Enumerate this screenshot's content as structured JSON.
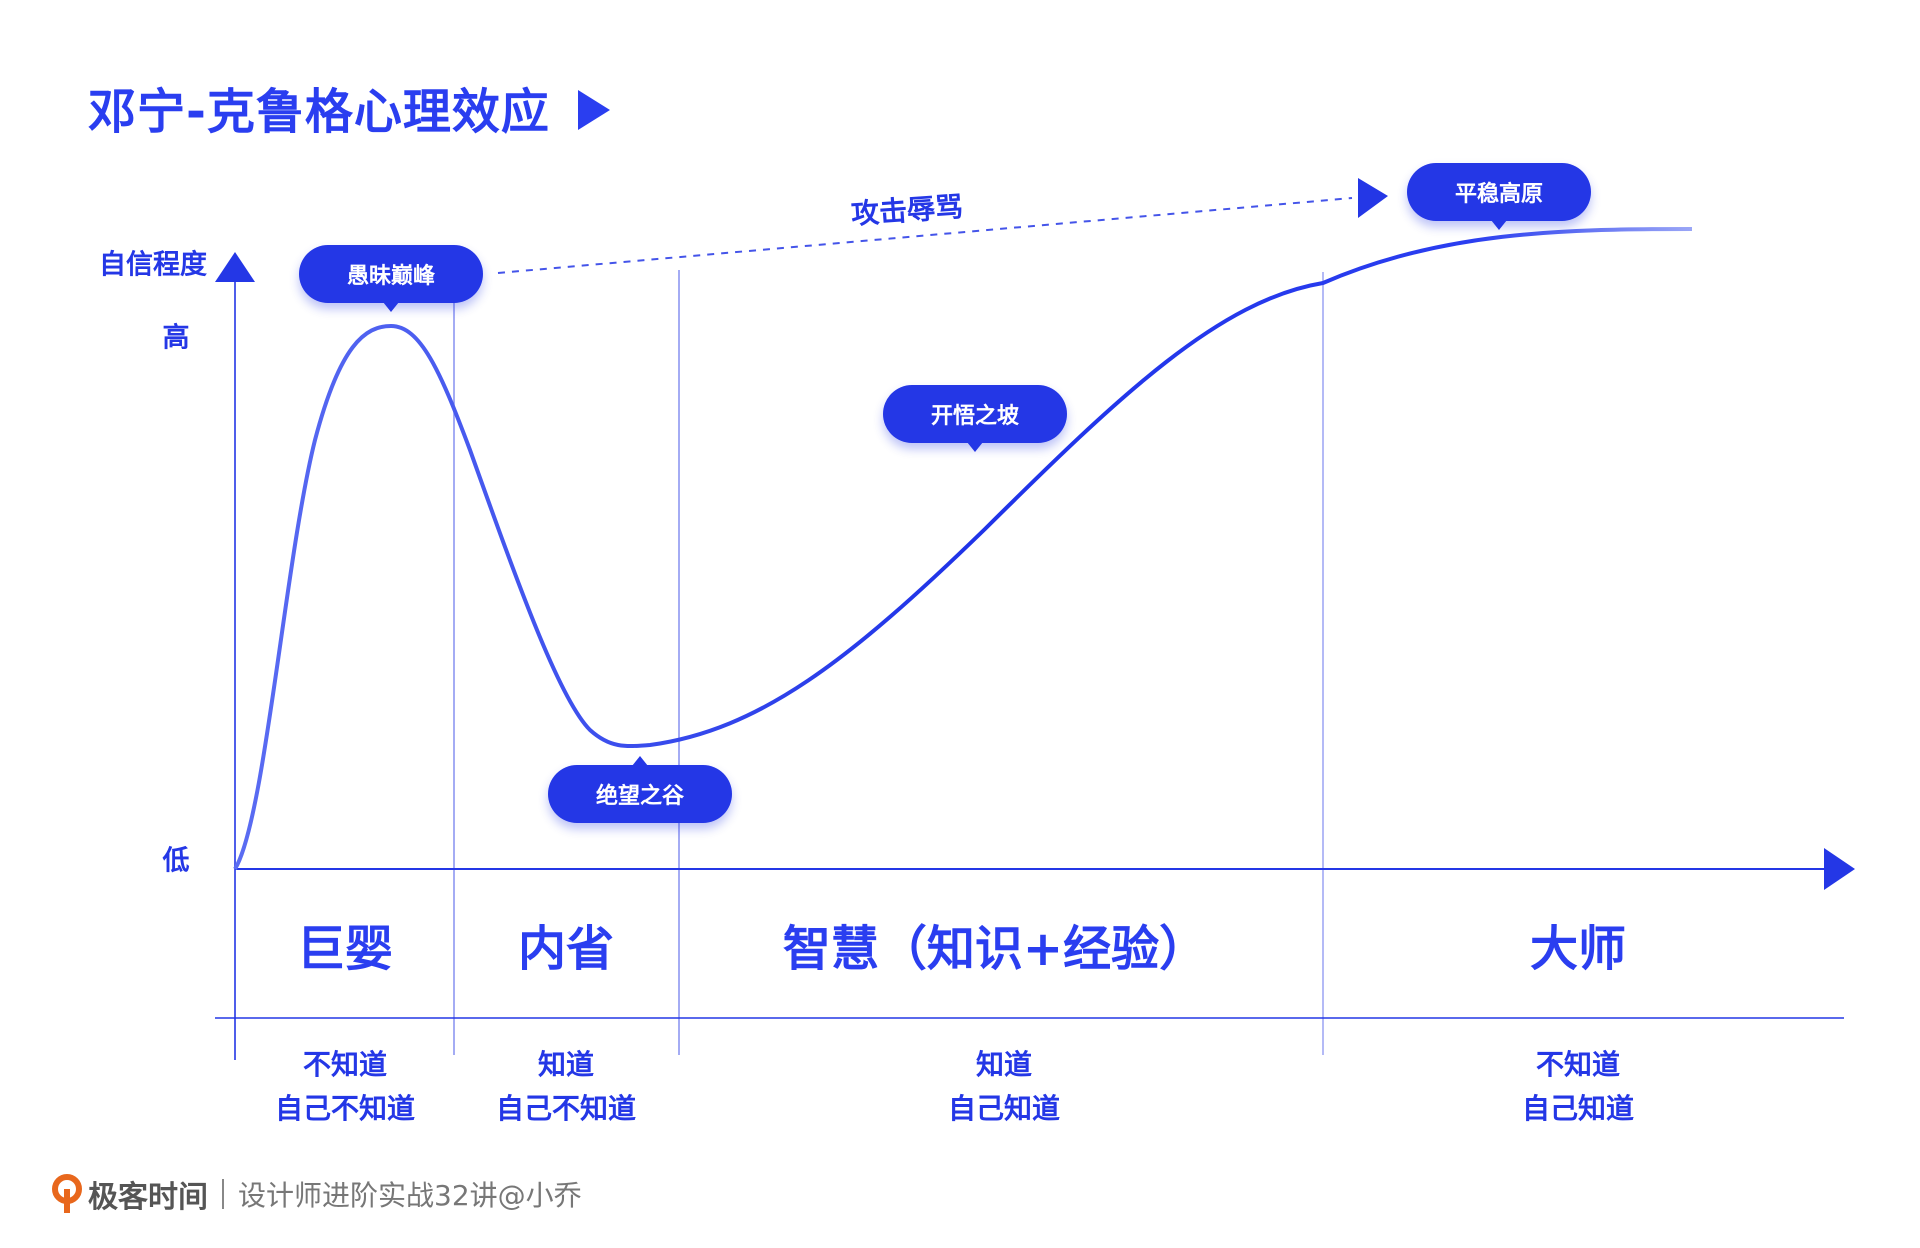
{
  "title": "邓宁-克鲁格心理效应",
  "colors": {
    "accent": "#2437e6",
    "curve": "#2a3ef0",
    "footer_logo": "#e8671c"
  },
  "y_axis": {
    "label": "自信程度",
    "high": "高",
    "low": "低"
  },
  "annotations": {
    "peak": "愚昧巅峰",
    "valley": "绝望之谷",
    "slope": "开悟之坡",
    "plateau": "平稳高原",
    "attack": "攻击辱骂"
  },
  "phases": [
    {
      "name": "巨婴",
      "line1": "不知道",
      "line2": "自己不知道"
    },
    {
      "name": "内省",
      "line1": "知道",
      "line2": "自己不知道"
    },
    {
      "name": "智慧（知识+经验）",
      "line1": "知道",
      "line2": "自己知道"
    },
    {
      "name": "大师",
      "line1": "不知道",
      "line2": "自己知道"
    }
  ],
  "footer": {
    "brand": "极客时间",
    "course": "设计师进阶实战32讲@小乔",
    "logo_icon": "geektime-logo"
  }
}
